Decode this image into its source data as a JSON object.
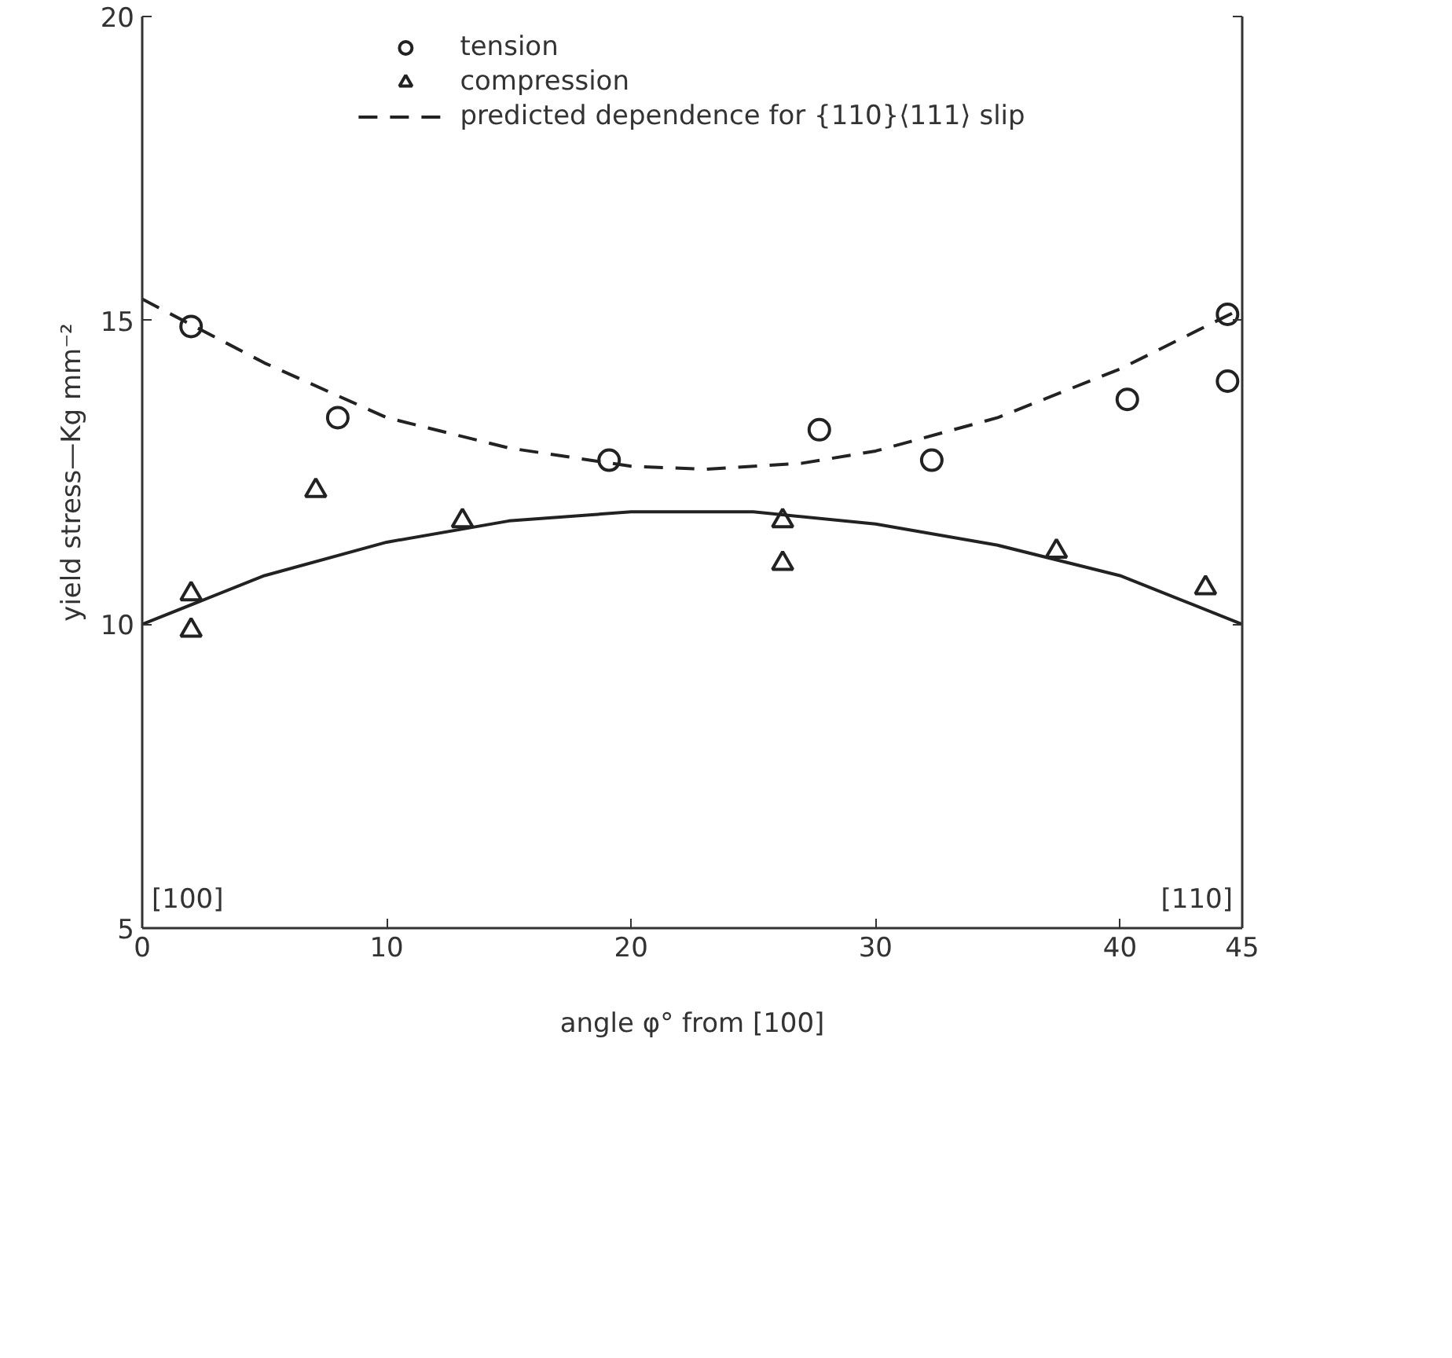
{
  "chart_data": {
    "type": "scatter",
    "xlabel": "angle φ° from [100]",
    "ylabel": "yield stress—Kg mm⁻²",
    "xlim": [
      0,
      45
    ],
    "ylim": [
      5,
      20
    ],
    "xticks": [
      0,
      10,
      20,
      30,
      40,
      45
    ],
    "annotations": [
      "[100]",
      "[110]"
    ],
    "yticks": [
      5,
      10,
      15,
      20
    ],
    "grid": false,
    "legend": "top",
    "series": [
      {
        "name": "tension",
        "marker": "circle",
        "color": "#222222",
        "x": [
          2,
          8,
          19.1,
          27.7,
          32.3,
          40.3,
          44.4,
          44.4
        ],
        "values": [
          14.9,
          13.4,
          12.7,
          13.2,
          12.7,
          13.7,
          15.1,
          14.0
        ]
      },
      {
        "name": "compression",
        "marker": "triangle",
        "color": "#222222",
        "x": [
          2,
          2,
          7.1,
          13.1,
          26.2,
          26.2,
          37.4,
          43.5
        ],
        "values": [
          10.5,
          9.9,
          12.2,
          11.7,
          11.7,
          11.0,
          11.2,
          10.6
        ]
      },
      {
        "name": "predicted dependence for {110}⟨111⟩ slip",
        "type": "line",
        "line_style": "dashed",
        "color": "#222222",
        "x": [
          0,
          5,
          10,
          15,
          20,
          23,
          27,
          30,
          35,
          40,
          45
        ],
        "values": [
          15.35,
          14.3,
          13.4,
          12.9,
          12.6,
          12.55,
          12.65,
          12.85,
          13.4,
          14.2,
          15.2
        ]
      },
      {
        "type": "line",
        "line_style": "solid",
        "color": "#222222",
        "x": [
          0,
          5,
          10,
          15,
          20,
          25,
          30,
          35,
          40,
          45
        ],
        "values": [
          10.0,
          10.8,
          11.35,
          11.7,
          11.85,
          11.85,
          11.65,
          11.3,
          10.8,
          10.0
        ]
      }
    ]
  }
}
